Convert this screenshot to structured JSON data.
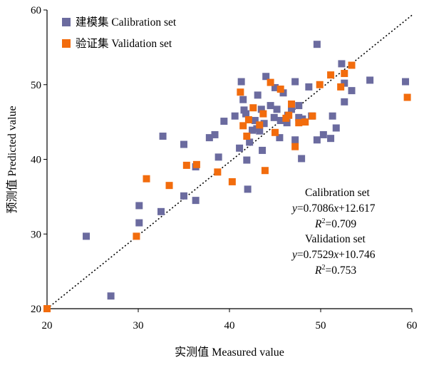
{
  "chart_data": {
    "type": "scatter",
    "title": "",
    "xlabel": "实测值 Measured value",
    "ylabel": "预测值 Predicted value",
    "xlim": [
      20,
      60
    ],
    "ylim": [
      20,
      60
    ],
    "xticks": [
      "20",
      "30",
      "40",
      "50",
      "60"
    ],
    "yticks": [
      "20",
      "30",
      "40",
      "50",
      "60"
    ],
    "grid": false,
    "legend_position": "top-left",
    "reference_line": {
      "type": "1:1",
      "style": "dotted",
      "from": [
        20,
        20
      ],
      "to": [
        60,
        59.3
      ]
    },
    "series": [
      {
        "name": "建模集  Calibration set",
        "color": "#6b6b9f",
        "points": [
          [
            24.3,
            29.7
          ],
          [
            27.0,
            21.7
          ],
          [
            30.1,
            33.8
          ],
          [
            30.1,
            31.5
          ],
          [
            32.5,
            33.0
          ],
          [
            32.7,
            43.1
          ],
          [
            35.0,
            42.0
          ],
          [
            35.0,
            35.1
          ],
          [
            36.3,
            39.0
          ],
          [
            36.3,
            34.5
          ],
          [
            37.8,
            42.9
          ],
          [
            38.4,
            43.3
          ],
          [
            38.8,
            40.3
          ],
          [
            39.4,
            45.1
          ],
          [
            40.6,
            45.8
          ],
          [
            41.1,
            41.5
          ],
          [
            41.3,
            50.4
          ],
          [
            41.5,
            48.0
          ],
          [
            41.6,
            46.6
          ],
          [
            41.8,
            46.1
          ],
          [
            41.9,
            39.9
          ],
          [
            42.0,
            36.0
          ],
          [
            42.2,
            42.3
          ],
          [
            42.5,
            43.9
          ],
          [
            42.8,
            45.2
          ],
          [
            43.0,
            44.1
          ],
          [
            43.1,
            48.6
          ],
          [
            43.3,
            43.8
          ],
          [
            43.5,
            46.7
          ],
          [
            43.6,
            41.2
          ],
          [
            43.8,
            44.8
          ],
          [
            44.0,
            51.1
          ],
          [
            44.5,
            47.2
          ],
          [
            44.9,
            45.6
          ],
          [
            45.0,
            49.6
          ],
          [
            45.2,
            46.7
          ],
          [
            45.5,
            42.9
          ],
          [
            45.6,
            45.2
          ],
          [
            45.9,
            48.9
          ],
          [
            46.3,
            44.9
          ],
          [
            46.4,
            45.9
          ],
          [
            46.8,
            46.7
          ],
          [
            47.2,
            50.4
          ],
          [
            47.2,
            42.6
          ],
          [
            47.6,
            45.6
          ],
          [
            47.6,
            47.2
          ],
          [
            47.9,
            40.1
          ],
          [
            48.0,
            45.4
          ],
          [
            48.7,
            49.7
          ],
          [
            49.0,
            45.8
          ],
          [
            49.6,
            55.4
          ],
          [
            49.6,
            42.6
          ],
          [
            50.3,
            43.3
          ],
          [
            51.1,
            42.8
          ],
          [
            51.3,
            45.8
          ],
          [
            51.7,
            44.2
          ],
          [
            52.3,
            52.8
          ],
          [
            52.6,
            50.2
          ],
          [
            52.6,
            47.7
          ],
          [
            53.4,
            49.2
          ],
          [
            55.4,
            50.6
          ],
          [
            59.3,
            50.4
          ]
        ]
      },
      {
        "name": "验证集  Validation set",
        "color": "#f26c0d",
        "points": [
          [
            20.0,
            20.0
          ],
          [
            29.8,
            29.7
          ],
          [
            30.9,
            37.4
          ],
          [
            33.4,
            36.5
          ],
          [
            35.3,
            39.2
          ],
          [
            36.4,
            39.3
          ],
          [
            38.7,
            38.3
          ],
          [
            40.3,
            37.0
          ],
          [
            41.2,
            49.0
          ],
          [
            41.5,
            44.5
          ],
          [
            41.9,
            43.1
          ],
          [
            42.1,
            45.3
          ],
          [
            42.6,
            46.9
          ],
          [
            43.3,
            44.6
          ],
          [
            43.7,
            46.1
          ],
          [
            43.9,
            38.5
          ],
          [
            44.5,
            50.3
          ],
          [
            45.0,
            43.6
          ],
          [
            45.6,
            49.4
          ],
          [
            46.2,
            45.5
          ],
          [
            46.5,
            45.9
          ],
          [
            46.8,
            47.4
          ],
          [
            47.2,
            41.7
          ],
          [
            47.6,
            44.9
          ],
          [
            48.3,
            45.0
          ],
          [
            49.1,
            45.8
          ],
          [
            49.9,
            50.0
          ],
          [
            51.1,
            51.3
          ],
          [
            52.2,
            49.7
          ],
          [
            52.6,
            51.5
          ],
          [
            53.4,
            52.6
          ],
          [
            59.5,
            48.3
          ]
        ]
      }
    ],
    "annotations": {
      "cal_title": "Calibration set",
      "cal_eq_y": "y",
      "cal_eq_mid": "=0.7086",
      "cal_eq_x": "x",
      "cal_eq_tail": "+12.617",
      "cal_r2_r": "R",
      "cal_r2_sup": "2",
      "cal_r2_val": "=0.709",
      "val_title": "Validation set",
      "val_eq_y": "y",
      "val_eq_mid": "=0.7529",
      "val_eq_x": "x",
      "val_eq_tail": "+10.746",
      "val_r2_r": "R",
      "val_r2_sup": "2",
      "val_r2_val": "=0.753"
    }
  }
}
